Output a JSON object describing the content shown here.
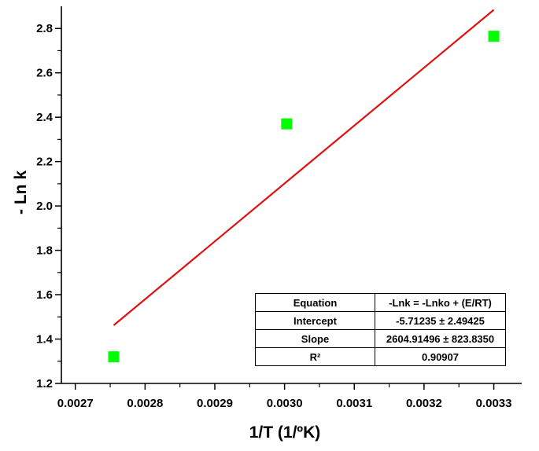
{
  "chart_data": {
    "type": "scatter",
    "title": "",
    "xlabel": "1/T (1/ºK)",
    "ylabel": "- Ln k",
    "xlim": [
      0.00268,
      0.00334
    ],
    "ylim": [
      1.2,
      2.9
    ],
    "xticks": [
      "0.0027",
      "0.0028",
      "0.0029",
      "0.0030",
      "0.0031",
      "0.0032",
      "0.0033"
    ],
    "yticks": [
      "1.2",
      "1.4",
      "1.6",
      "1.8",
      "2.0",
      "2.2",
      "2.4",
      "2.6",
      "2.8"
    ],
    "grid": false,
    "series": [
      {
        "marker": "square",
        "color": "#00ff00",
        "points": [
          {
            "x": 0.002755,
            "y": 1.32
          },
          {
            "x": 0.003003,
            "y": 2.37
          },
          {
            "x": 0.0033,
            "y": 2.765
          }
        ]
      }
    ],
    "fit_line": {
      "color": "#e01010",
      "x": [
        0.002755,
        0.0033
      ],
      "y": [
        1.462,
        2.884
      ]
    },
    "table": {
      "rows": [
        [
          "Equation",
          "-Lnk =  -Lnko + (E/RT)"
        ],
        [
          "Intercept",
          "-5.71235 ± 2.49425"
        ],
        [
          "Slope",
          "2604.91496 ± 823.8350"
        ],
        [
          "R²",
          "0.90907"
        ]
      ]
    }
  }
}
